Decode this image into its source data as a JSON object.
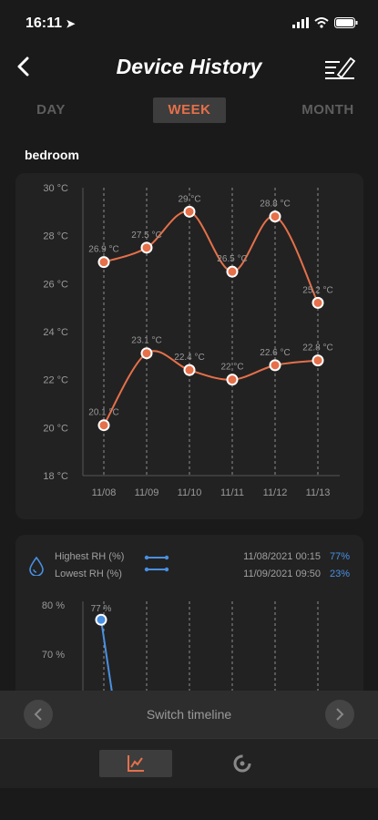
{
  "status": {
    "time": "16:11"
  },
  "header": {
    "title": "Device History"
  },
  "tabs": [
    {
      "label": "DAY",
      "active": false
    },
    {
      "label": "WEEK",
      "active": true
    },
    {
      "label": "MONTH",
      "active": false
    }
  ],
  "room": "bedroom",
  "colors": {
    "accent": "#e5704a",
    "blue": "#4a90e2",
    "muted": "#5e5e5e"
  },
  "chart_data": [
    {
      "type": "line",
      "title": "",
      "xlabel": "",
      "ylabel": "",
      "categories": [
        "11/08",
        "11/09",
        "11/10",
        "11/11",
        "11/12",
        "11/13"
      ],
      "yticks": [
        "30 °C",
        "28 °C",
        "26 °C",
        "24 °C",
        "22 °C",
        "20 °C",
        "18 °C"
      ],
      "ylim": [
        18,
        30
      ],
      "grid": "vertical dashed",
      "series": [
        {
          "values": [
            26.9,
            27.5,
            29.0,
            26.5,
            28.8,
            25.2
          ],
          "labels": [
            "26.9 °C",
            "27.5 °C",
            "29 °C",
            "26.5 °C",
            "28.8 °C",
            "25.2 °C"
          ]
        },
        {
          "values": [
            20.1,
            23.1,
            22.4,
            22.0,
            22.6,
            22.8
          ],
          "labels": [
            "20.1 °C",
            "23.1 °C",
            "22.4 °C",
            "22 °C",
            "22.6 °C",
            "22.8 °C"
          ]
        }
      ]
    },
    {
      "type": "line",
      "title": "",
      "yticks": [
        "80 %",
        "70 %"
      ],
      "ylim": [
        60,
        80
      ],
      "grid": "vertical dashed",
      "series": [
        {
          "name": "Highest RH (%)",
          "values": [
            77
          ],
          "labels": [
            "77 %"
          ]
        }
      ]
    }
  ],
  "rh": {
    "highest_label": "Highest RH (%)",
    "lowest_label": "Lowest RH (%)",
    "highest_time": "11/08/2021 00:15",
    "highest_value": "77%",
    "lowest_time": "11/09/2021 09:50",
    "lowest_value": "23%"
  },
  "timeline": {
    "label": "Switch timeline"
  },
  "icons": [
    "back-icon",
    "edit-icon",
    "droplet-icon",
    "legend-icon",
    "prev-icon",
    "next-icon",
    "chart-tab-icon",
    "gauge-tab-icon"
  ]
}
